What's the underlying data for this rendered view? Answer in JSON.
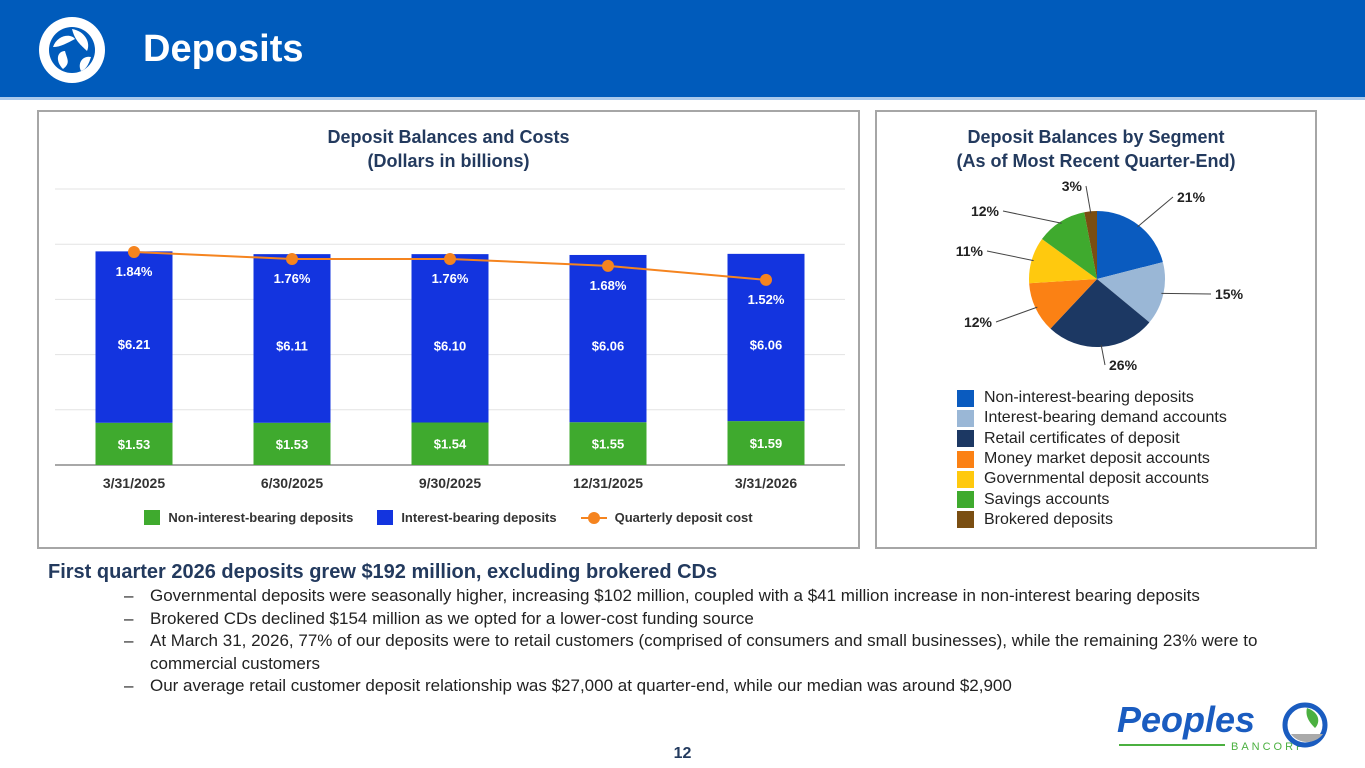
{
  "header": {
    "title": "Deposits",
    "logo": "peoples-bancorp-leaf-mark-icon"
  },
  "chart_data": [
    {
      "type": "bar",
      "stacked": true,
      "title": "Deposit Balances and Costs",
      "subtitle": "(Dollars in billions)",
      "categories": [
        "3/31/2025",
        "6/30/2025",
        "9/30/2025",
        "12/31/2025",
        "3/31/2026"
      ],
      "series": [
        {
          "name": "Non-interest-bearing deposits",
          "type": "bar",
          "color": "#3faa2e",
          "values": [
            1.53,
            1.53,
            1.54,
            1.55,
            1.59
          ],
          "labels": [
            "$1.53",
            "$1.53",
            "$1.54",
            "$1.55",
            "$1.59"
          ]
        },
        {
          "name": "Interest-bearing deposits",
          "type": "bar",
          "color": "#1334df",
          "values": [
            6.21,
            6.11,
            6.1,
            6.06,
            6.06
          ],
          "labels": [
            "$6.21",
            "$6.11",
            "$6.10",
            "$6.06",
            "$6.06"
          ]
        },
        {
          "name": "Quarterly deposit cost",
          "type": "line",
          "color": "#f5841f",
          "values": [
            1.84,
            1.76,
            1.76,
            1.68,
            1.52
          ],
          "labels": [
            "1.84%",
            "1.76%",
            "1.76%",
            "1.68%",
            "1.52%"
          ]
        }
      ],
      "ylim": [
        0,
        10
      ],
      "grid": true,
      "legend": "bottom"
    },
    {
      "type": "pie",
      "title": "Deposit Balances by Segment",
      "subtitle": "(As of Most Recent Quarter-End)",
      "slices": [
        {
          "label": "Non-interest-bearing deposits",
          "value": 21,
          "text": "21%",
          "color": "#0a5bbf"
        },
        {
          "label": "Interest-bearing demand accounts",
          "value": 15,
          "text": "15%",
          "color": "#9ab7d6"
        },
        {
          "label": "Retail certificates of deposit",
          "value": 26,
          "text": "26%",
          "color": "#1c3863"
        },
        {
          "label": "Money market deposit accounts",
          "value": 12,
          "text": "12%",
          "color": "#fb8114"
        },
        {
          "label": "Governmental deposit accounts",
          "value": 11,
          "text": "11%",
          "color": "#ffc90e"
        },
        {
          "label": "Savings accounts",
          "value": 12,
          "text": "12%",
          "color": "#3faa2e"
        },
        {
          "label": "Brokered deposits",
          "value": 3,
          "text": "3%",
          "color": "#7a4e12"
        }
      ],
      "legend": "bottom"
    }
  ],
  "commentary": {
    "headline": "First quarter 2026 deposits grew $192 million, excluding brokered CDs",
    "dash": "–",
    "bullets": [
      "Governmental deposits were seasonally higher, increasing $102 million, coupled with a $41 million increase in non-interest bearing deposits",
      "Brokered CDs declined $154 million as we opted for a lower-cost funding source",
      "At March 31, 2026, 77% of our deposits were to retail customers (comprised of consumers and small businesses), while the remaining 23% were to commercial customers",
      "Our average retail customer deposit relationship was $27,000 at quarter-end, while our median was around $2,900"
    ]
  },
  "footer": {
    "page_number": "12",
    "brand_name": "Peoples",
    "brand_sub": "BANCORP"
  }
}
